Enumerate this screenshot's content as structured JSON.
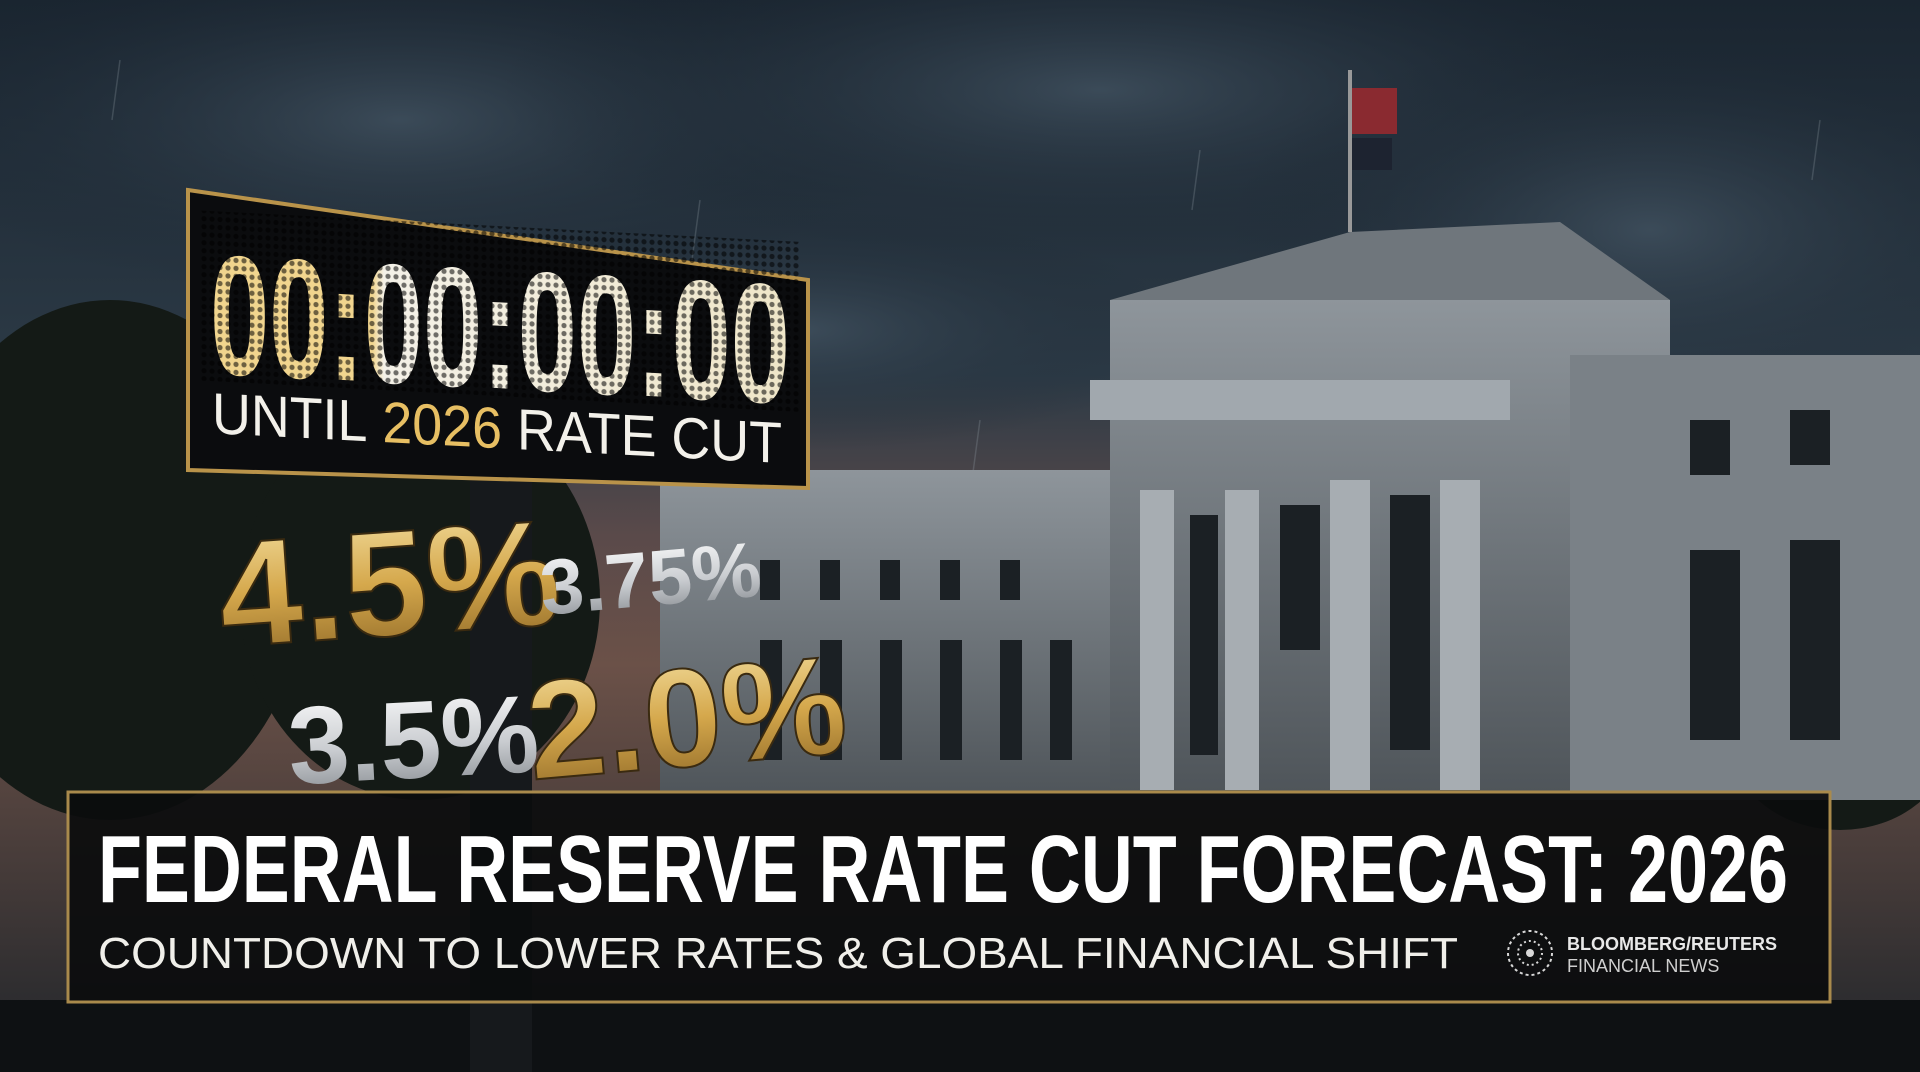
{
  "countdown": {
    "time": "00:00:00:00",
    "until": "UNTIL",
    "year": "2026",
    "rate_cut": "RATE CUT"
  },
  "rates": [
    "4.5%",
    "3.75%",
    "3.5%",
    "2.0%"
  ],
  "banner": {
    "headline": "FEDERAL RESERVE RATE CUT FORECAST: 2026",
    "subheadline": "COUNTDOWN TO LOWER RATES & GLOBAL FINANCIAL SHIFT"
  },
  "source": {
    "name": "BLOOMBERG/REUTERS",
    "tagline": "FINANCIAL NEWS"
  }
}
